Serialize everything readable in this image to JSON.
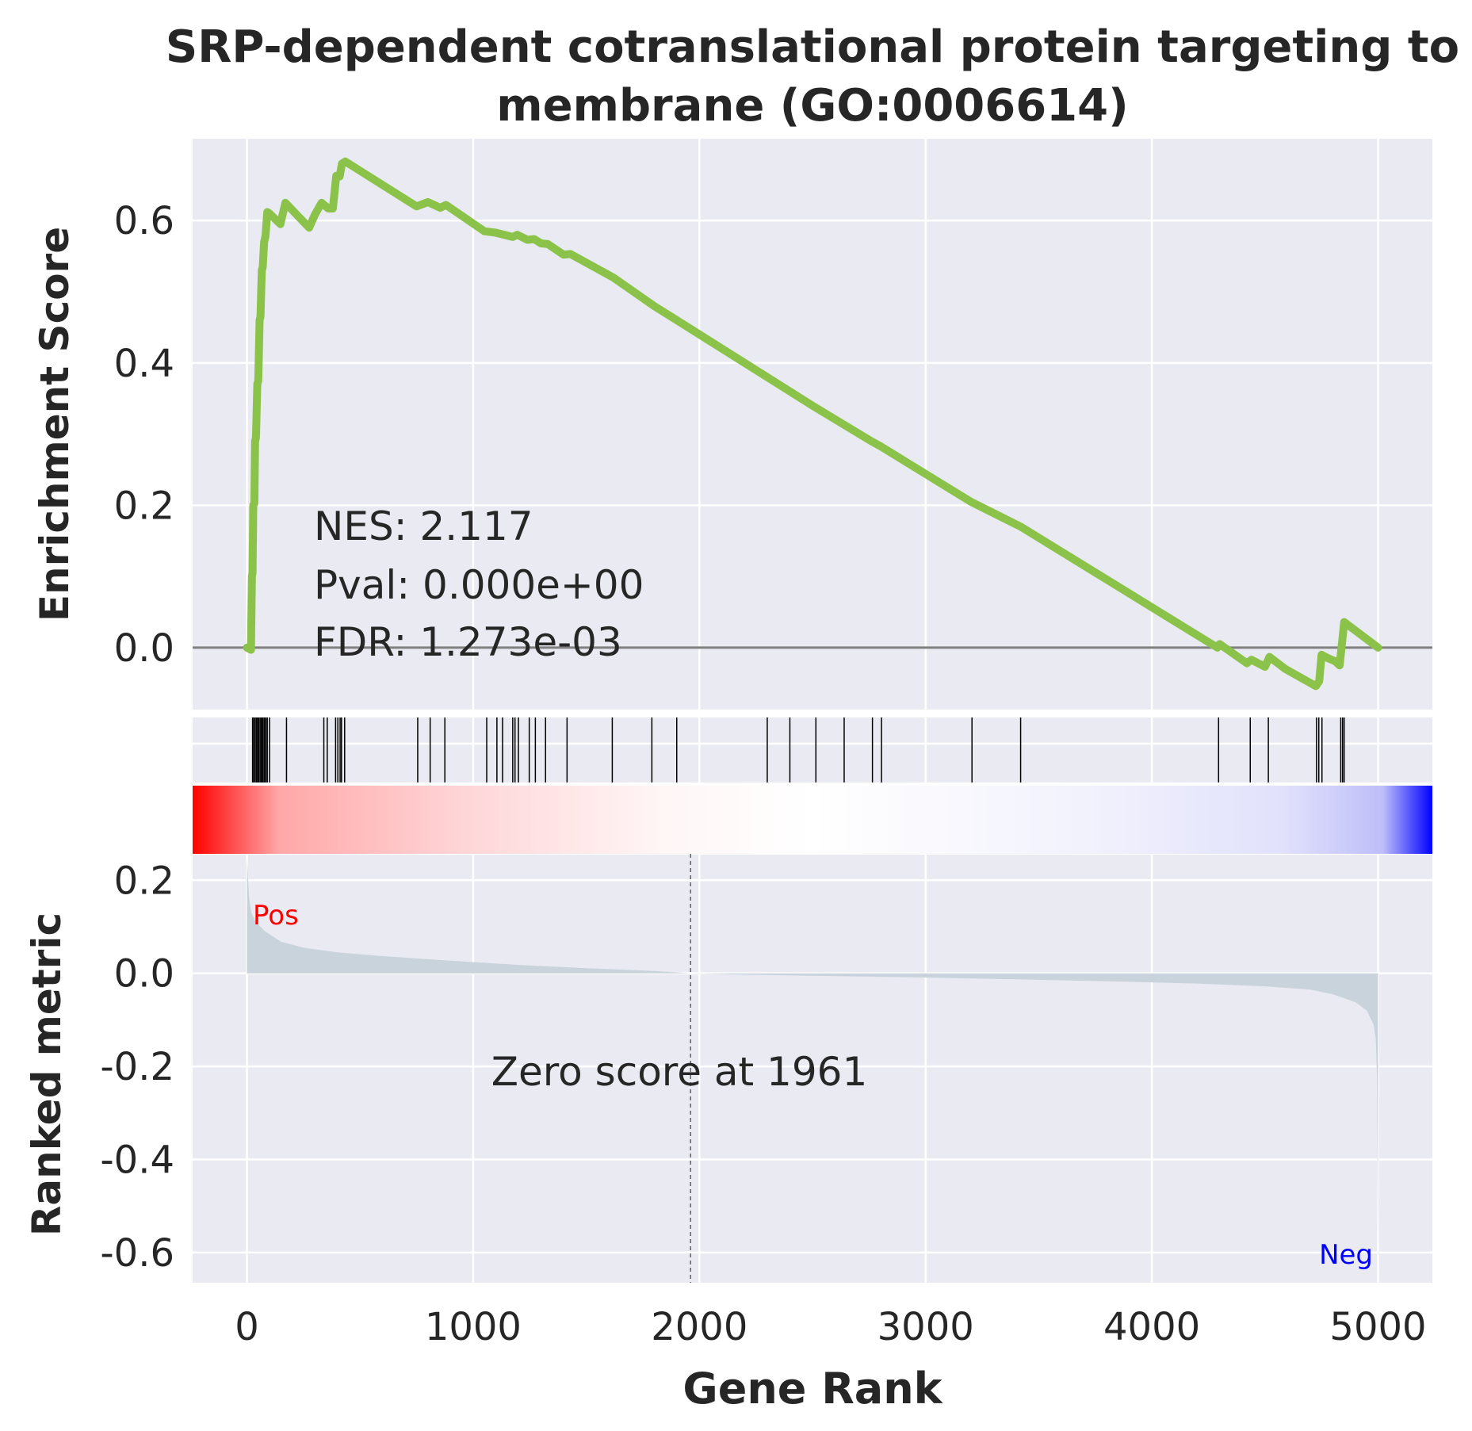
{
  "chart_data": {
    "type": "line",
    "title": "SRP-dependent cotranslational protein targeting to\nmembrane (GO:0006614)",
    "xlabel": "Gene Rank",
    "x_ticks": [
      0,
      1000,
      2000,
      3000,
      4000,
      5000
    ],
    "xlim": [
      -240,
      5240
    ],
    "grid": true,
    "es_panel": {
      "ylabel": "Enrichment Score",
      "y_ticks": [
        0.6,
        0.4,
        0.2,
        0.0
      ],
      "y_tick_labels": [
        "0.6",
        "0.4",
        "0.2",
        "0.0"
      ],
      "ylim": [
        -0.087,
        0.715
      ],
      "line_color": "#8bc34a",
      "curve": {
        "x": [
          0,
          18,
          22,
          25,
          28,
          33,
          36,
          40,
          46,
          50,
          56,
          60,
          66,
          70,
          76,
          82,
          90,
          100,
          148,
          170,
          275,
          300,
          330,
          360,
          380,
          395,
          410,
          420,
          435,
          750,
          800,
          855,
          880,
          1050,
          1100,
          1175,
          1195,
          1240,
          1270,
          1300,
          1330,
          1400,
          1430,
          1620,
          1800,
          1900,
          2400,
          2500,
          2630,
          2760,
          2800,
          3200,
          3420,
          4290,
          4300,
          4420,
          4440,
          4500,
          4520,
          4590,
          4725,
          4730,
          4740,
          4750,
          4780,
          4810,
          4830,
          4845,
          4850,
          5000
        ],
        "y": [
          0.0,
          -0.003,
          0.1,
          0.105,
          0.2,
          0.203,
          0.29,
          0.295,
          0.37,
          0.375,
          0.46,
          0.465,
          0.53,
          0.535,
          0.57,
          0.578,
          0.612,
          0.61,
          0.595,
          0.625,
          0.59,
          0.608,
          0.625,
          0.617,
          0.617,
          0.663,
          0.662,
          0.68,
          0.683,
          0.62,
          0.626,
          0.618,
          0.622,
          0.585,
          0.583,
          0.577,
          0.58,
          0.573,
          0.574,
          0.568,
          0.567,
          0.552,
          0.553,
          0.52,
          0.48,
          0.46,
          0.36,
          0.34,
          0.315,
          0.29,
          0.283,
          0.205,
          0.17,
          0.0,
          0.005,
          -0.022,
          -0.017,
          -0.027,
          -0.013,
          -0.03,
          -0.054,
          -0.052,
          -0.047,
          -0.01,
          -0.015,
          -0.019,
          -0.025,
          0.02,
          0.036,
          0.0
        ]
      },
      "stats": {
        "nes_label": "NES: 2.117",
        "pval_label": "Pval: 0.000e+00",
        "fdr_label": "FDR: 1.273e-03"
      }
    },
    "hit_ranks": [
      25,
      30,
      36,
      42,
      47,
      52,
      58,
      63,
      68,
      72,
      78,
      84,
      90,
      100,
      175,
      340,
      355,
      392,
      402,
      412,
      418,
      432,
      755,
      810,
      875,
      1060,
      1105,
      1130,
      1175,
      1185,
      1200,
      1248,
      1275,
      1320,
      1415,
      1615,
      1790,
      1900,
      2300,
      2400,
      2515,
      2640,
      2765,
      2805,
      3205,
      3420,
      4295,
      4435,
      4515,
      4728,
      4738,
      4752,
      4835,
      4843,
      4850
    ],
    "rank_colorbar": {
      "colors": [
        "#ff0000",
        "#ffffff",
        "#0000ff"
      ]
    },
    "metric_panel": {
      "ylabel": "Ranked metric",
      "y_ticks": [
        0.2,
        0.0,
        -0.2,
        -0.4,
        -0.6
      ],
      "y_tick_labels": [
        "0.2",
        "0.0",
        "-0.2",
        "-0.4",
        "-0.6"
      ],
      "ylim": [
        -0.665,
        0.255
      ],
      "fill_color": "#c9d3db",
      "metric": {
        "x": [
          0,
          5,
          10,
          20,
          40,
          80,
          150,
          250,
          400,
          600,
          900,
          1200,
          1500,
          1800,
          1961,
          2200,
          2600,
          3000,
          3400,
          3800,
          4200,
          4500,
          4700,
          4800,
          4900,
          4950,
          4980,
          4990,
          4995,
          5000
        ],
        "y": [
          0.25,
          0.2,
          0.16,
          0.13,
          0.11,
          0.09,
          0.068,
          0.055,
          0.045,
          0.037,
          0.027,
          0.018,
          0.011,
          0.005,
          0.0,
          -0.003,
          -0.006,
          -0.009,
          -0.013,
          -0.017,
          -0.022,
          -0.028,
          -0.035,
          -0.045,
          -0.062,
          -0.08,
          -0.11,
          -0.14,
          -0.22,
          -0.64
        ]
      },
      "zero_score_rank": 1961,
      "zero_score_label": "Zero score at 1961",
      "pos_label": "Pos",
      "pos_color": "#ff0000",
      "neg_label": "Neg",
      "neg_color": "#0000ff"
    }
  }
}
